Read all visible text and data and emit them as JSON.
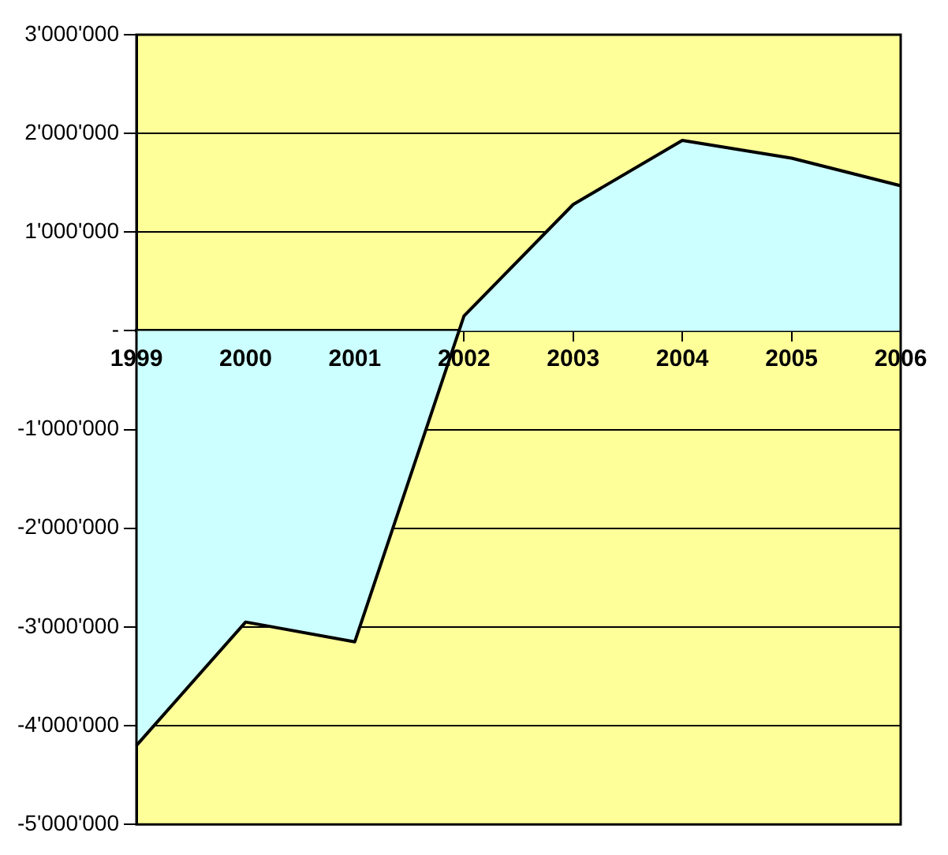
{
  "chart_data": {
    "type": "area",
    "categories": [
      "1999",
      "2000",
      "2001",
      "2002",
      "2003",
      "2004",
      "2005",
      "2006"
    ],
    "series": [
      {
        "color": "#ccffff",
        "values": [
          -4200000,
          -2950000,
          -3150000,
          150000,
          1280000,
          1930000,
          1750000,
          1470000
        ]
      }
    ],
    "ylim": [
      -5000000,
      3000000
    ],
    "yticks": [
      {
        "value": -5000000,
        "label": "-5'000'000"
      },
      {
        "value": -4000000,
        "label": "-4'000'000"
      },
      {
        "value": -3000000,
        "label": "-3'000'000"
      },
      {
        "value": -2000000,
        "label": "-2'000'000"
      },
      {
        "value": -1000000,
        "label": "-1'000'000"
      },
      {
        "value": 0,
        "label": "-"
      },
      {
        "value": 1000000,
        "label": "1'000'000"
      },
      {
        "value": 2000000,
        "label": "2'000'000"
      },
      {
        "value": 3000000,
        "label": "3'000'000"
      }
    ],
    "grid": "y",
    "legend": false,
    "marker": "none",
    "line_style": "solid"
  }
}
